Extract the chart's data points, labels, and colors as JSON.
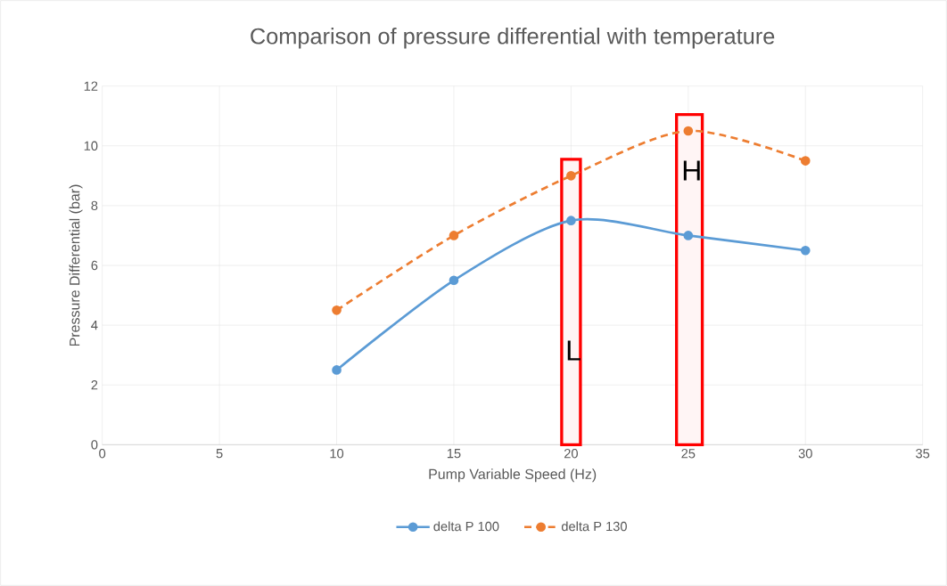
{
  "chart_data": {
    "type": "line",
    "title": "Comparison of pressure differential with temperature",
    "xlabel": "Pump Variable Speed (Hz)",
    "ylabel": "Pressure Differential (bar)",
    "x": [
      10,
      15,
      20,
      25,
      30
    ],
    "series": [
      {
        "name": "delta P 100",
        "color": "#5b9bd5",
        "line_style": "solid",
        "values": [
          2.5,
          5.5,
          7.5,
          7.0,
          6.5
        ]
      },
      {
        "name": "delta P 130",
        "color": "#ed7d31",
        "line_style": "dashed",
        "values": [
          4.5,
          7.0,
          9.0,
          10.5,
          9.5
        ]
      }
    ],
    "xlim": [
      0,
      35
    ],
    "xticks": [
      0,
      5,
      10,
      15,
      20,
      25,
      30,
      35
    ],
    "ylim": [
      0,
      12
    ],
    "yticks": [
      0,
      2,
      4,
      6,
      8,
      10,
      12
    ],
    "bands": [
      {
        "axis": "x",
        "from": 19.6,
        "to": 20.4,
        "label": "L",
        "color": "#ff0000"
      },
      {
        "axis": "x",
        "from": 24.5,
        "to": 25.6,
        "label": "H",
        "color": "#ff0000"
      }
    ],
    "grid": true,
    "marker": "circle",
    "legend": "bottom"
  }
}
